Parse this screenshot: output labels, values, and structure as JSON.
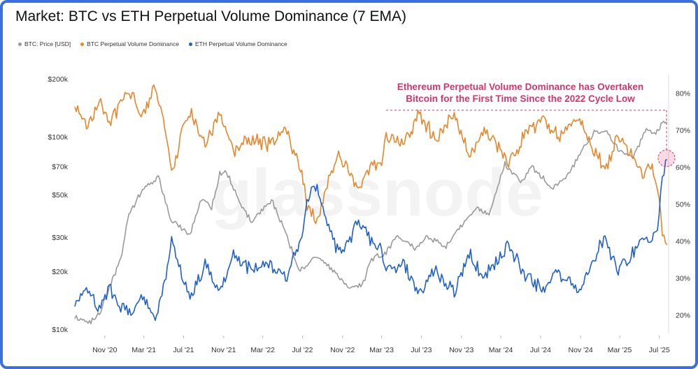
{
  "title": "Market: BTC vs ETH Perpetual Volume Dominance (7 EMA)",
  "legend": [
    {
      "label": "BTC: Price [USD]",
      "color": "#9a9a9a"
    },
    {
      "label": "BTC Perpetual Volume Dominance",
      "color": "#e8862a"
    },
    {
      "label": "ETH Perpetual Volume Dominance",
      "color": "#1f5fcf"
    }
  ],
  "annotation": {
    "line1": "Ethereum Perpetual Volume Dominance has Overtaken",
    "line2": "Bitcoin for the First Time Since the 2022 Cycle Low",
    "color": "#d6336c"
  },
  "watermark": "glassnode",
  "chart_data": {
    "type": "line",
    "x_ticks": [
      "Nov '20",
      "Mar '21",
      "Jul '21",
      "Nov '21",
      "Mar '22",
      "Jul '22",
      "Nov '22",
      "Mar '23",
      "Jul '23",
      "Nov '23",
      "Mar '24",
      "Jul '24",
      "Nov '24",
      "Mar '25",
      "Jul '25"
    ],
    "left_axis": {
      "scale": "log",
      "ticks": [
        "$10k",
        "$20k",
        "$30k",
        "$50k",
        "$70k",
        "$100k",
        "$200k"
      ],
      "tick_values": [
        10000,
        20000,
        30000,
        50000,
        70000,
        100000,
        200000
      ],
      "range": [
        9500,
        210000
      ]
    },
    "right_axis": {
      "scale": "linear",
      "ticks": [
        "20%",
        "30%",
        "40%",
        "50%",
        "60%",
        "70%",
        "80%"
      ],
      "tick_values": [
        20,
        30,
        40,
        50,
        60,
        70,
        80
      ],
      "range": [
        15,
        85
      ]
    },
    "x_range": [
      "2020-08-01",
      "2025-07-25"
    ],
    "series": [
      {
        "name": "BTC: Price [USD]",
        "axis": "left",
        "color": "#9a9a9a",
        "points": [
          [
            "2020-08-01",
            11500
          ],
          [
            "2020-09-15",
            10800
          ],
          [
            "2020-10-20",
            12500
          ],
          [
            "2020-11-25",
            18000
          ],
          [
            "2020-12-20",
            23000
          ],
          [
            "2021-01-10",
            38000
          ],
          [
            "2021-02-20",
            52000
          ],
          [
            "2021-04-14",
            62000
          ],
          [
            "2021-05-20",
            38000
          ],
          [
            "2021-06-25",
            33000
          ],
          [
            "2021-07-20",
            31000
          ],
          [
            "2021-08-25",
            48000
          ],
          [
            "2021-09-25",
            43000
          ],
          [
            "2021-10-20",
            64000
          ],
          [
            "2021-11-10",
            66000
          ],
          [
            "2021-12-15",
            47000
          ],
          [
            "2022-01-25",
            36000
          ],
          [
            "2022-03-28",
            47000
          ],
          [
            "2022-05-15",
            30000
          ],
          [
            "2022-06-20",
            20000
          ],
          [
            "2022-08-15",
            24000
          ],
          [
            "2022-10-15",
            19500
          ],
          [
            "2022-11-20",
            16500
          ],
          [
            "2022-12-31",
            16600
          ],
          [
            "2023-01-25",
            23000
          ],
          [
            "2023-03-15",
            25000
          ],
          [
            "2023-04-15",
            30000
          ],
          [
            "2023-06-15",
            26000
          ],
          [
            "2023-07-15",
            30500
          ],
          [
            "2023-09-15",
            26500
          ],
          [
            "2023-10-25",
            34000
          ],
          [
            "2023-12-15",
            42000
          ],
          [
            "2024-01-25",
            40000
          ],
          [
            "2024-03-14",
            72000
          ],
          [
            "2024-05-01",
            58000
          ],
          [
            "2024-06-05",
            70000
          ],
          [
            "2024-08-05",
            54000
          ],
          [
            "2024-09-20",
            63000
          ],
          [
            "2024-11-12",
            88000
          ],
          [
            "2024-12-17",
            106000
          ],
          [
            "2025-01-25",
            104000
          ],
          [
            "2025-02-28",
            84000
          ],
          [
            "2025-04-08",
            77000
          ],
          [
            "2025-05-22",
            110000
          ],
          [
            "2025-06-20",
            103000
          ],
          [
            "2025-07-14",
            120000
          ],
          [
            "2025-07-25",
            118000
          ]
        ]
      },
      {
        "name": "BTC Perpetual Volume Dominance",
        "axis": "right",
        "color": "#e8862a",
        "points": [
          [
            "2020-08-01",
            77
          ],
          [
            "2020-09-10",
            71
          ],
          [
            "2020-10-15",
            78
          ],
          [
            "2020-11-15",
            72
          ],
          [
            "2020-12-20",
            77
          ],
          [
            "2021-01-20",
            80
          ],
          [
            "2021-02-25",
            73
          ],
          [
            "2021-04-05",
            82
          ],
          [
            "2021-05-12",
            68
          ],
          [
            "2021-05-25",
            58
          ],
          [
            "2021-06-25",
            69
          ],
          [
            "2021-07-25",
            75
          ],
          [
            "2021-09-05",
            67
          ],
          [
            "2021-10-20",
            74
          ],
          [
            "2021-12-01",
            64
          ],
          [
            "2022-01-25",
            68
          ],
          [
            "2022-03-15",
            66
          ],
          [
            "2022-05-10",
            70
          ],
          [
            "2022-06-25",
            60
          ],
          [
            "2022-07-15",
            49
          ],
          [
            "2022-08-15",
            45
          ],
          [
            "2022-09-15",
            55
          ],
          [
            "2022-10-20",
            63
          ],
          [
            "2022-11-15",
            61
          ],
          [
            "2022-12-20",
            54
          ],
          [
            "2023-01-25",
            60
          ],
          [
            "2023-03-01",
            62
          ],
          [
            "2023-03-15",
            68
          ],
          [
            "2023-05-10",
            66
          ],
          [
            "2023-06-20",
            74
          ],
          [
            "2023-08-15",
            68
          ],
          [
            "2023-10-10",
            74
          ],
          [
            "2023-11-25",
            63
          ],
          [
            "2024-01-10",
            70
          ],
          [
            "2024-02-15",
            66
          ],
          [
            "2024-03-25",
            61
          ],
          [
            "2024-05-15",
            69
          ],
          [
            "2024-07-05",
            73
          ],
          [
            "2024-08-25",
            68
          ],
          [
            "2024-10-25",
            74
          ],
          [
            "2024-12-05",
            66
          ],
          [
            "2025-01-15",
            59
          ],
          [
            "2025-02-20",
            68
          ],
          [
            "2025-04-05",
            64
          ],
          [
            "2025-05-10",
            58
          ],
          [
            "2025-06-05",
            60
          ],
          [
            "2025-06-25",
            55
          ],
          [
            "2025-07-10",
            42
          ],
          [
            "2025-07-25",
            39
          ]
        ]
      },
      {
        "name": "ETH Perpetual Volume Dominance",
        "axis": "right",
        "color": "#1f5fcf",
        "points": [
          [
            "2020-08-01",
            23
          ],
          [
            "2020-09-10",
            28
          ],
          [
            "2020-10-15",
            22
          ],
          [
            "2020-11-15",
            27
          ],
          [
            "2020-12-20",
            22
          ],
          [
            "2021-01-20",
            20
          ],
          [
            "2021-02-25",
            26
          ],
          [
            "2021-04-05",
            18
          ],
          [
            "2021-05-12",
            32
          ],
          [
            "2021-05-25",
            40
          ],
          [
            "2021-06-25",
            31
          ],
          [
            "2021-07-25",
            25
          ],
          [
            "2021-09-05",
            33
          ],
          [
            "2021-10-20",
            26
          ],
          [
            "2021-12-01",
            36
          ],
          [
            "2022-01-25",
            32
          ],
          [
            "2022-03-15",
            34
          ],
          [
            "2022-05-10",
            30
          ],
          [
            "2022-06-25",
            40
          ],
          [
            "2022-07-15",
            51
          ],
          [
            "2022-08-15",
            55
          ],
          [
            "2022-09-15",
            45
          ],
          [
            "2022-10-20",
            37
          ],
          [
            "2022-11-15",
            39
          ],
          [
            "2022-12-20",
            46
          ],
          [
            "2023-01-25",
            40
          ],
          [
            "2023-03-01",
            38
          ],
          [
            "2023-03-15",
            32
          ],
          [
            "2023-05-10",
            34
          ],
          [
            "2023-06-20",
            26
          ],
          [
            "2023-08-15",
            32
          ],
          [
            "2023-10-10",
            26
          ],
          [
            "2023-11-25",
            37
          ],
          [
            "2024-01-10",
            30
          ],
          [
            "2024-02-15",
            34
          ],
          [
            "2024-03-25",
            39
          ],
          [
            "2024-05-15",
            31
          ],
          [
            "2024-07-05",
            27
          ],
          [
            "2024-08-25",
            32
          ],
          [
            "2024-10-25",
            26
          ],
          [
            "2024-12-05",
            34
          ],
          [
            "2025-01-15",
            41
          ],
          [
            "2025-02-20",
            32
          ],
          [
            "2025-04-05",
            36
          ],
          [
            "2025-05-10",
            42
          ],
          [
            "2025-06-05",
            40
          ],
          [
            "2025-06-25",
            45
          ],
          [
            "2025-07-10",
            56
          ],
          [
            "2025-07-25",
            62
          ]
        ]
      }
    ]
  }
}
